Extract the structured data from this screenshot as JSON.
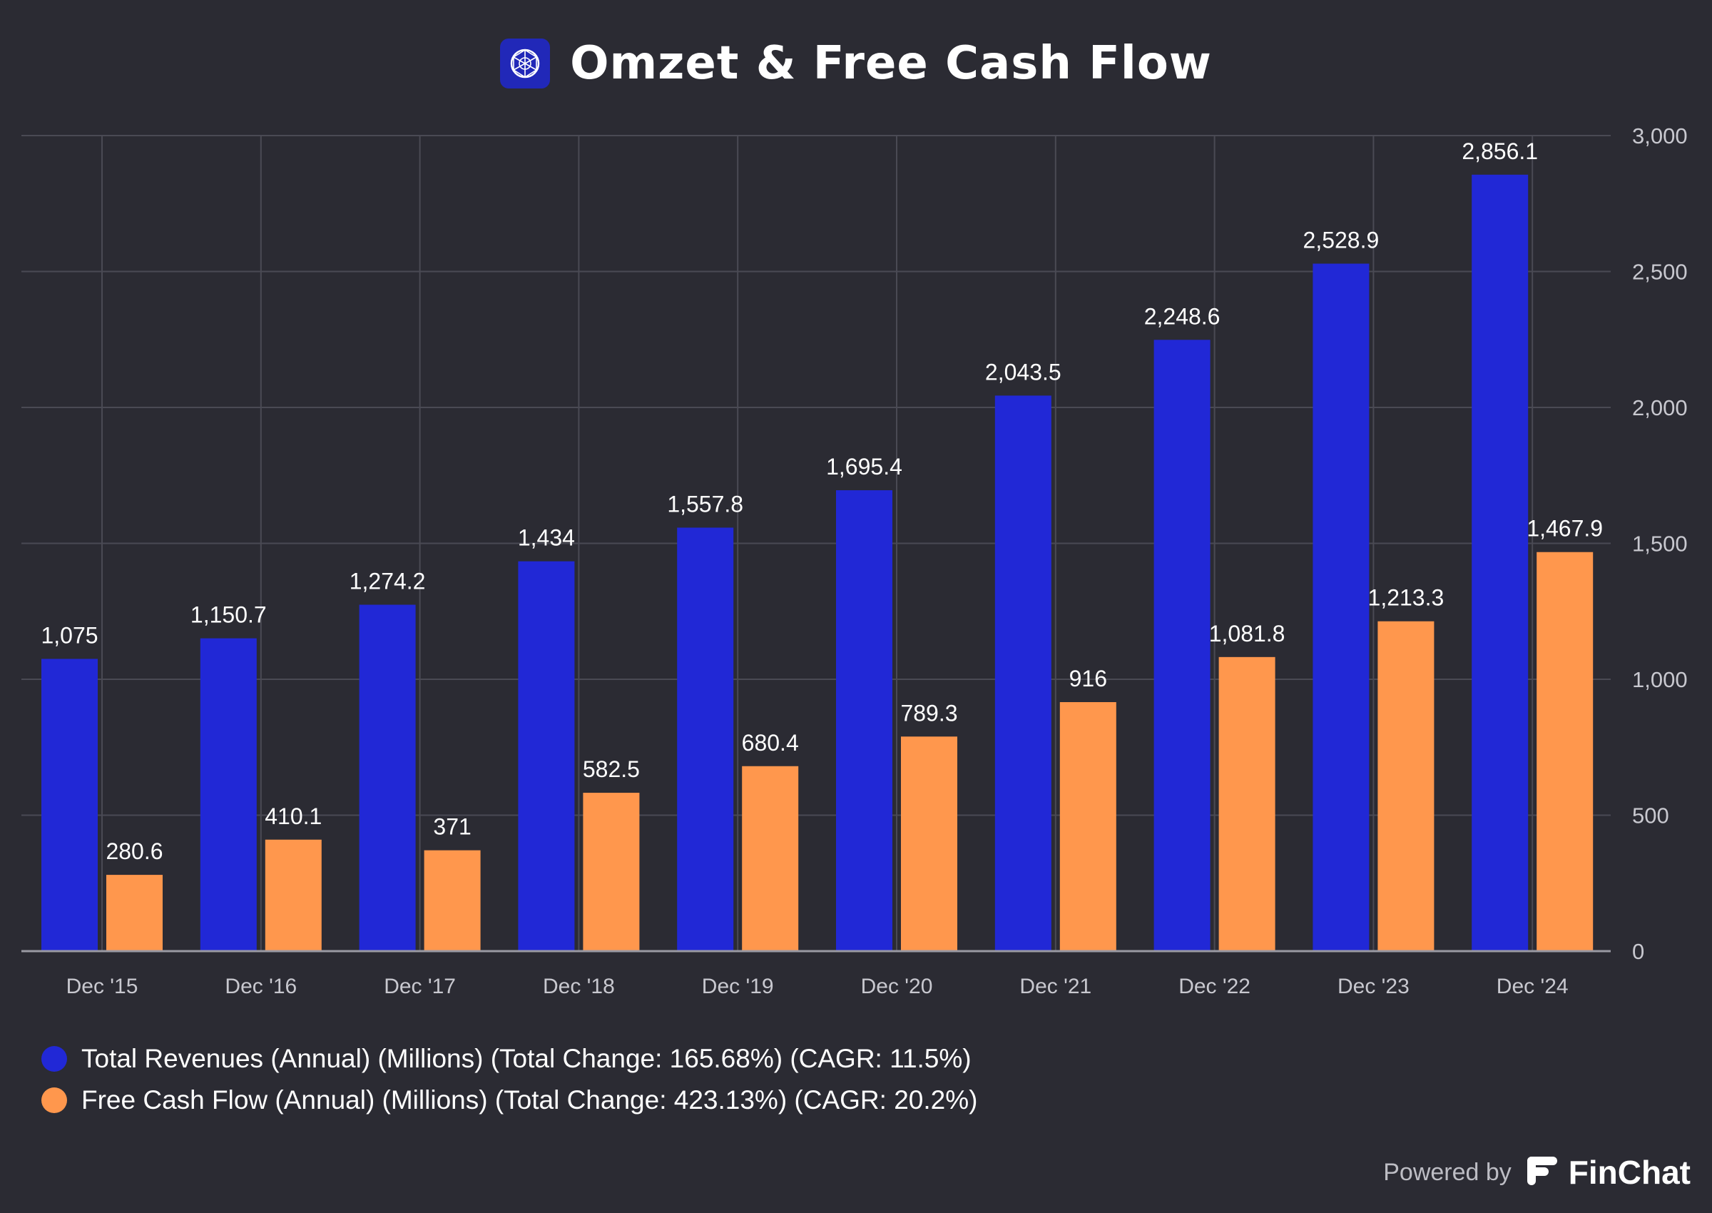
{
  "title": "Omzet & Free Cash Flow",
  "footer": {
    "powered_by": "Powered by",
    "brand": "FinChat"
  },
  "colors": {
    "background": "#2b2b33",
    "revenue": "#2128d6",
    "fcf": "#ff974d",
    "grid": "#4a4a54",
    "tick": "#c8c8cf"
  },
  "icons": {
    "logo": "globe-network-icon",
    "brand": "finchat-logo-icon"
  },
  "chart_data": {
    "type": "bar",
    "categories": [
      "Dec '15",
      "Dec '16",
      "Dec '17",
      "Dec '18",
      "Dec '19",
      "Dec '20",
      "Dec '21",
      "Dec '22",
      "Dec '23",
      "Dec '24"
    ],
    "series": [
      {
        "name": "Total Revenues (Annual) (Millions) (Total Change: 165.68%) (CAGR: 11.5%)",
        "color": "#2128d6",
        "values": [
          1075,
          1150.7,
          1274.2,
          1434,
          1557.8,
          1695.4,
          2043.5,
          2248.6,
          2528.9,
          2856.1
        ],
        "labels": [
          "1,075",
          "1,150.7",
          "1,274.2",
          "1,434",
          "1,557.8",
          "1,695.4",
          "2,043.5",
          "2,248.6",
          "2,528.9",
          "2,856.1"
        ]
      },
      {
        "name": "Free Cash Flow (Annual) (Millions) (Total Change: 423.13%) (CAGR: 20.2%)",
        "color": "#ff974d",
        "values": [
          280.6,
          410.1,
          371,
          582.5,
          680.4,
          789.3,
          916,
          1081.8,
          1213.3,
          1467.9
        ],
        "labels": [
          "280.6",
          "410.1",
          "371",
          "582.5",
          "680.4",
          "789.3",
          "916",
          "1,081.8",
          "1,213.3",
          "1,467.9"
        ]
      }
    ],
    "ylim": [
      0,
      3000
    ],
    "yticks": [
      0,
      500,
      1000,
      1500,
      2000,
      2500,
      3000
    ],
    "ytick_labels": [
      "0",
      "500",
      "1,000",
      "1,500",
      "2,000",
      "2,500",
      "3,000"
    ],
    "y_axis_side": "right",
    "grid": true,
    "legend_position": "bottom-left"
  }
}
